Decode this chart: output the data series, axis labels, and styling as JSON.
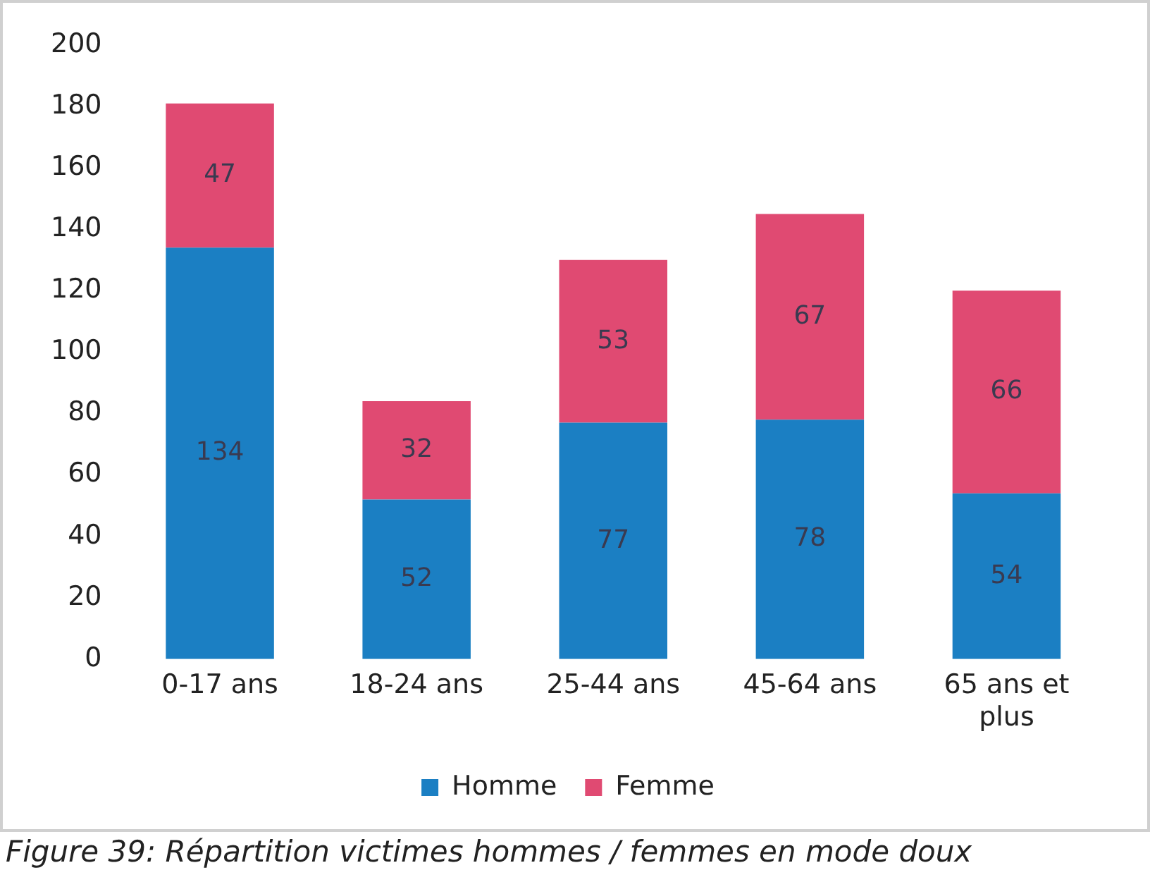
{
  "chart_data": {
    "type": "bar",
    "stacked": true,
    "categories": [
      "0-17 ans",
      "18-24 ans",
      "25-44 ans",
      "45-64 ans",
      "65 ans et plus"
    ],
    "series": [
      {
        "name": "Homme",
        "color": "#1b7fc3",
        "values": [
          134,
          52,
          77,
          78,
          54
        ]
      },
      {
        "name": "Femme",
        "color": "#e04a72",
        "values": [
          47,
          32,
          53,
          67,
          66
        ]
      }
    ],
    "ylim": [
      0,
      200
    ],
    "yticks": [
      0,
      20,
      40,
      60,
      80,
      100,
      120,
      140,
      160,
      180,
      200
    ],
    "grid": false,
    "legend": "bottom",
    "data_labels": true,
    "annotations": [
      "Figure 39: Répartition victimes hommes / femmes en mode doux"
    ]
  }
}
